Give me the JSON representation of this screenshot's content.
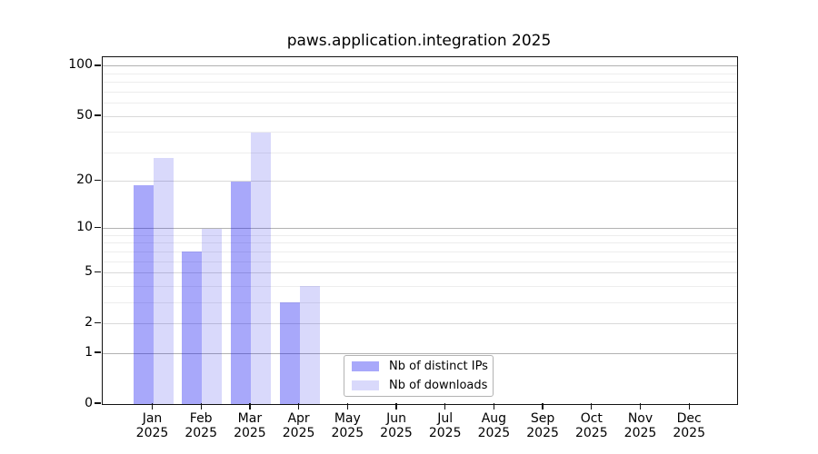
{
  "chart_data": {
    "type": "bar",
    "title": "paws.application.integration 2025",
    "categories": [
      "Jan 2025",
      "Feb 2025",
      "Mar 2025",
      "Apr 2025",
      "May 2025",
      "Jun 2025",
      "Jul 2025",
      "Aug 2025",
      "Sep 2025",
      "Oct 2025",
      "Nov 2025",
      "Dec 2025"
    ],
    "series": [
      {
        "name": "Nb of distinct IPs",
        "color": "#0000f057",
        "values": [
          19,
          7,
          20,
          3,
          0,
          0,
          0,
          0,
          0,
          0,
          0,
          0
        ]
      },
      {
        "name": "Nb of downloads",
        "color": "#0000e626",
        "values": [
          28,
          10,
          40,
          4,
          0,
          0,
          0,
          0,
          0,
          0,
          0,
          0
        ]
      }
    ],
    "xlabel": "",
    "ylabel": "",
    "yscale": "log1p",
    "ylim": [
      0,
      112
    ],
    "yticks": [
      0,
      1,
      2,
      5,
      10,
      20,
      50,
      100
    ],
    "yticks_minor": [
      3,
      4,
      6,
      7,
      8,
      9,
      30,
      40,
      60,
      70,
      80,
      90
    ],
    "grid": "horizontal",
    "legend_position": "lower center"
  },
  "colors": {
    "bar_ips_rendered": "#a8a8f8",
    "bar_downloads_rendered": "#d8d8f8",
    "grid_major": "#b2b2b2",
    "grid_mid": "#d9d9d9",
    "grid_minor": "#ededed",
    "spine": "#111111",
    "text": "#000000",
    "legend_border": "#b3b3b3",
    "background": "#ffffff"
  }
}
